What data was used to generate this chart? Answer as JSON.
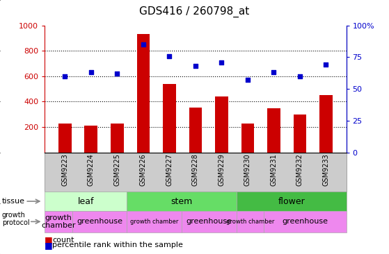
{
  "title": "GDS416 / 260798_at",
  "samples": [
    "GSM9223",
    "GSM9224",
    "GSM9225",
    "GSM9226",
    "GSM9227",
    "GSM9228",
    "GSM9229",
    "GSM9230",
    "GSM9231",
    "GSM9232",
    "GSM9233"
  ],
  "counts": [
    230,
    210,
    230,
    930,
    540,
    355,
    440,
    230,
    350,
    300,
    450
  ],
  "percentiles": [
    60,
    63,
    62,
    85,
    76,
    68,
    71,
    57,
    63,
    60,
    69
  ],
  "ylim_left": [
    0,
    1000
  ],
  "ylim_right": [
    0,
    100
  ],
  "yticks_left": [
    200,
    400,
    600,
    800,
    1000
  ],
  "yticks_right": [
    0,
    25,
    50,
    75,
    100
  ],
  "bar_color": "#cc0000",
  "scatter_color": "#0000cc",
  "tissue_groups": [
    {
      "label": "leaf",
      "start": 0,
      "end": 3,
      "color": "#ccffcc"
    },
    {
      "label": "stem",
      "start": 3,
      "end": 7,
      "color": "#66dd66"
    },
    {
      "label": "flower",
      "start": 7,
      "end": 11,
      "color": "#44bb44"
    }
  ],
  "protocol_groups": [
    {
      "label": "growth\nchamber",
      "start": 0,
      "end": 1
    },
    {
      "label": "greenhouse",
      "start": 1,
      "end": 3
    },
    {
      "label": "growth chamber",
      "start": 3,
      "end": 5
    },
    {
      "label": "greenhouse",
      "start": 5,
      "end": 7
    },
    {
      "label": "growth chamber",
      "start": 7,
      "end": 8
    },
    {
      "label": "greenhouse",
      "start": 8,
      "end": 11
    }
  ],
  "protocol_color": "#ee88ee",
  "ylabel_left_color": "#cc0000",
  "ylabel_right_color": "#0000cc",
  "xtick_bg_color": "#cccccc",
  "fig_width": 5.59,
  "fig_height": 3.66,
  "fig_dpi": 100
}
